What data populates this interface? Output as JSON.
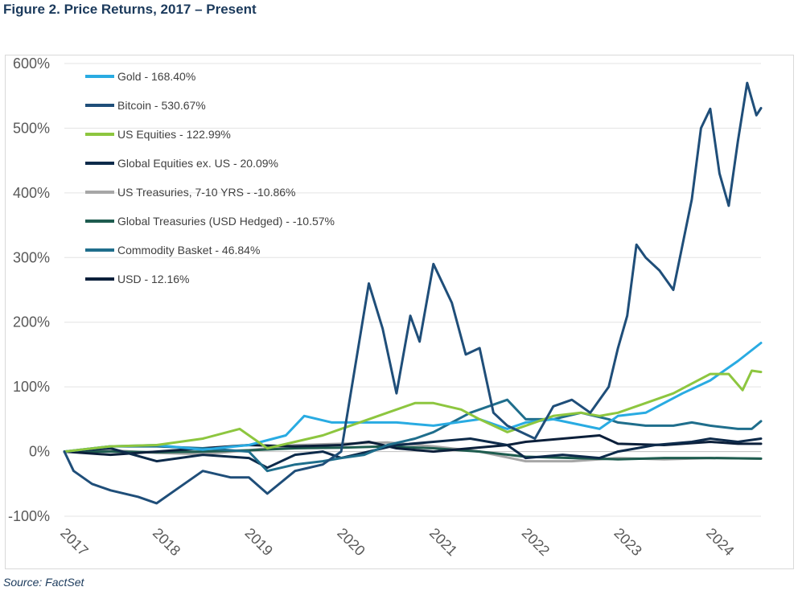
{
  "figure": {
    "title": "Figure 2. Price Returns, 2017 – Present",
    "source": "Source: FactSet"
  },
  "chart_data": {
    "type": "line",
    "title": "",
    "xlabel": "",
    "ylabel": "",
    "x_ticks": [
      "2017",
      "2018",
      "2019",
      "2020",
      "2021",
      "2022",
      "2023",
      "2024"
    ],
    "x_range": [
      2017.0,
      2024.55
    ],
    "y_ticks": [
      "600%",
      "500%",
      "400%",
      "300%",
      "200%",
      "100%",
      "0%",
      "-100%"
    ],
    "ylim": [
      -100,
      600
    ],
    "grid": "horizontal",
    "legend_position": "top-left",
    "series": [
      {
        "name": "Gold - 168.40%",
        "color": "#29abe2",
        "x": [
          2017.0,
          2017.5,
          2018.0,
          2018.5,
          2019.0,
          2019.4,
          2019.6,
          2019.9,
          2020.2,
          2020.6,
          2021.0,
          2021.5,
          2021.8,
          2022.0,
          2022.3,
          2022.8,
          2023.0,
          2023.3,
          2023.7,
          2024.0,
          2024.3,
          2024.55
        ],
        "y": [
          0,
          8,
          10,
          3,
          10,
          25,
          55,
          45,
          45,
          45,
          40,
          50,
          35,
          45,
          50,
          35,
          55,
          60,
          90,
          110,
          140,
          168
        ]
      },
      {
        "name": "Bitcoin - 530.67%",
        "color": "#1f4e79",
        "x": [
          2017.0,
          2017.1,
          2017.3,
          2017.5,
          2017.8,
          2018.0,
          2018.2,
          2018.5,
          2018.8,
          2019.0,
          2019.2,
          2019.5,
          2019.8,
          2020.0,
          2020.15,
          2020.3,
          2020.45,
          2020.6,
          2020.75,
          2020.85,
          2021.0,
          2021.2,
          2021.35,
          2021.5,
          2021.65,
          2021.8,
          2021.95,
          2022.1,
          2022.3,
          2022.5,
          2022.7,
          2022.9,
          2023.0,
          2023.1,
          2023.2,
          2023.3,
          2023.45,
          2023.6,
          2023.7,
          2023.8,
          2023.9,
          2024.0,
          2024.1,
          2024.2,
          2024.3,
          2024.4,
          2024.5,
          2024.55
        ],
        "y": [
          0,
          -30,
          -50,
          -60,
          -70,
          -80,
          -60,
          -30,
          -40,
          -40,
          -65,
          -30,
          -20,
          0,
          130,
          260,
          190,
          90,
          210,
          170,
          290,
          230,
          150,
          160,
          60,
          40,
          30,
          20,
          70,
          80,
          60,
          100,
          160,
          210,
          320,
          300,
          280,
          250,
          320,
          390,
          500,
          530,
          430,
          380,
          480,
          570,
          520,
          531
        ]
      },
      {
        "name": "US Equities - 122.99%",
        "color": "#8dc63f",
        "x": [
          2017.0,
          2017.5,
          2018.0,
          2018.5,
          2018.9,
          2019.2,
          2019.5,
          2019.8,
          2020.0,
          2020.2,
          2020.5,
          2020.8,
          2021.0,
          2021.3,
          2021.5,
          2021.8,
          2022.0,
          2022.3,
          2022.6,
          2022.8,
          2023.0,
          2023.3,
          2023.6,
          2023.8,
          2024.0,
          2024.2,
          2024.35,
          2024.45,
          2024.55
        ],
        "y": [
          0,
          8,
          10,
          20,
          35,
          5,
          15,
          25,
          35,
          45,
          60,
          75,
          75,
          65,
          50,
          30,
          40,
          55,
          60,
          55,
          60,
          75,
          90,
          105,
          120,
          120,
          95,
          125,
          123
        ]
      },
      {
        "name": "Global Equities ex. US - 20.09%",
        "color": "#0d2a4a",
        "x": [
          2017.0,
          2017.5,
          2018.0,
          2018.5,
          2019.0,
          2019.2,
          2019.5,
          2019.8,
          2020.0,
          2020.3,
          2020.6,
          2021.0,
          2021.4,
          2021.8,
          2022.0,
          2022.4,
          2022.8,
          2023.0,
          2023.4,
          2023.8,
          2024.0,
          2024.3,
          2024.55
        ],
        "y": [
          0,
          5,
          -15,
          -5,
          -10,
          -25,
          -5,
          0,
          -10,
          0,
          10,
          15,
          20,
          10,
          -10,
          -5,
          -10,
          0,
          10,
          15,
          20,
          15,
          20
        ]
      },
      {
        "name": "US Treasuries, 7-10 YRS - -10.86%",
        "color": "#a6a6a6",
        "x": [
          2017.0,
          2017.5,
          2018.0,
          2018.5,
          2019.0,
          2019.5,
          2020.0,
          2020.5,
          2021.0,
          2021.5,
          2022.0,
          2022.5,
          2023.0,
          2023.5,
          2024.0,
          2024.55
        ],
        "y": [
          0,
          2,
          -2,
          -4,
          2,
          10,
          12,
          14,
          8,
          0,
          -15,
          -15,
          -10,
          -12,
          -10,
          -11
        ]
      },
      {
        "name": "Global Treasuries (USD Hedged) - -10.57%",
        "color": "#1e5c4f",
        "x": [
          2017.0,
          2017.5,
          2018.0,
          2018.5,
          2019.0,
          2019.5,
          2020.0,
          2020.5,
          2021.0,
          2021.5,
          2022.0,
          2022.5,
          2023.0,
          2023.5,
          2024.0,
          2024.55
        ],
        "y": [
          0,
          0,
          -1,
          0,
          2,
          5,
          6,
          8,
          5,
          0,
          -8,
          -10,
          -12,
          -10,
          -10,
          -11
        ]
      },
      {
        "name": "Commodity Basket - 46.84%",
        "color": "#1f6e8c",
        "x": [
          2017.0,
          2017.5,
          2018.0,
          2018.5,
          2019.0,
          2019.2,
          2019.5,
          2019.8,
          2020.0,
          2020.25,
          2020.5,
          2020.8,
          2021.0,
          2021.4,
          2021.8,
          2022.0,
          2022.3,
          2022.6,
          2022.9,
          2023.0,
          2023.3,
          2023.6,
          2023.8,
          2024.0,
          2024.3,
          2024.45,
          2024.55
        ],
        "y": [
          0,
          8,
          8,
          5,
          0,
          -30,
          -20,
          -15,
          -10,
          -5,
          10,
          20,
          30,
          60,
          80,
          50,
          50,
          60,
          50,
          45,
          40,
          40,
          45,
          40,
          35,
          35,
          47
        ]
      },
      {
        "name": "USD - 12.16%",
        "color": "#0b1f3a",
        "x": [
          2017.0,
          2017.5,
          2018.0,
          2018.5,
          2019.0,
          2019.5,
          2020.0,
          2020.3,
          2020.6,
          2021.0,
          2021.4,
          2021.8,
          2022.0,
          2022.4,
          2022.8,
          2023.0,
          2023.5,
          2024.0,
          2024.3,
          2024.55
        ],
        "y": [
          0,
          -5,
          0,
          5,
          10,
          8,
          10,
          15,
          5,
          0,
          5,
          10,
          15,
          20,
          25,
          12,
          10,
          15,
          12,
          12
        ]
      }
    ]
  }
}
